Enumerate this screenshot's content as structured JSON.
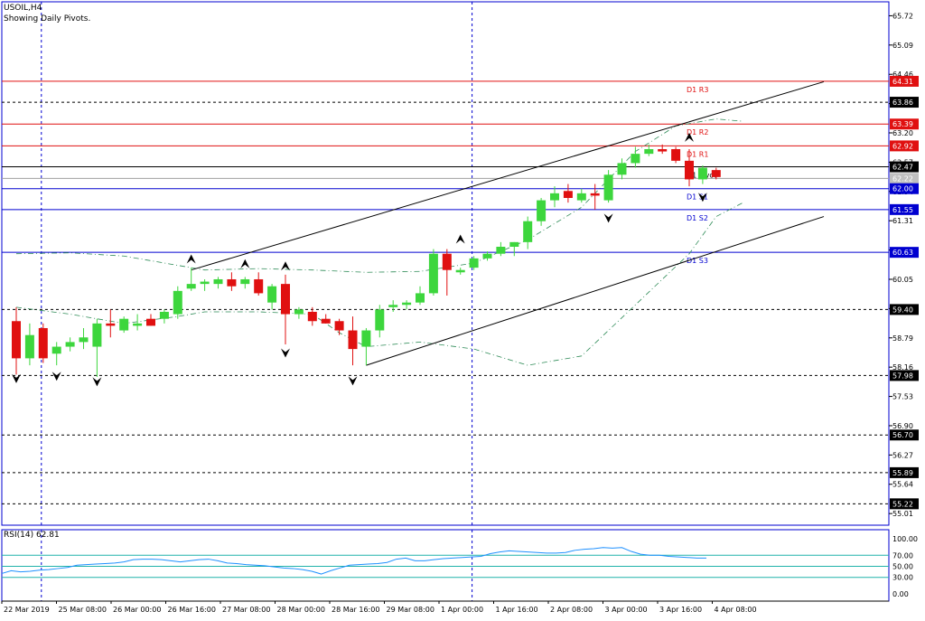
{
  "symbol_line": "USOIL,H4",
  "subtitle": "Showing Daily Pivots.",
  "rsi_label": "RSI(14) 62.81",
  "colors": {
    "frame": "#0000d0",
    "bull": "#3dd63d",
    "bear": "#e01010",
    "resistance": "#e01010",
    "support": "#0000d0",
    "pivot_line": "#000000",
    "envelope": "#2e8b57",
    "rsi_line": "#1e90ff",
    "rsi_level": "#20b2aa"
  },
  "price_axis_ticks": [
    "65.72",
    "65.09",
    "64.46",
    "63.83",
    "63.20",
    "62.57",
    "61.94",
    "61.31",
    "60.68",
    "60.05",
    "59.42",
    "58.79",
    "58.16",
    "57.53",
    "56.90",
    "56.27",
    "55.64",
    "55.01"
  ],
  "price_axis_boxes": [
    {
      "text": "64.31",
      "fill": "#e01010",
      "fg": "#ffffff"
    },
    {
      "text": "63.86",
      "fill": "#000000",
      "fg": "#ffffff"
    },
    {
      "text": "63.39",
      "fill": "#e01010",
      "fg": "#ffffff"
    },
    {
      "text": "62.92",
      "fill": "#e01010",
      "fg": "#ffffff"
    },
    {
      "text": "62.47",
      "fill": "#000000",
      "fg": "#ffffff"
    },
    {
      "text": "62.22",
      "fill": "#c0c0c0",
      "fg": "#ffffff"
    },
    {
      "text": "62.00",
      "fill": "#0000d0",
      "fg": "#ffffff"
    },
    {
      "text": "61.55",
      "fill": "#0000d0",
      "fg": "#ffffff"
    },
    {
      "text": "60.63",
      "fill": "#0000d0",
      "fg": "#ffffff"
    },
    {
      "text": "59.40",
      "fill": "#000000",
      "fg": "#ffffff"
    },
    {
      "text": "57.98",
      "fill": "#000000",
      "fg": "#ffffff"
    },
    {
      "text": "56.70",
      "fill": "#000000",
      "fg": "#ffffff"
    },
    {
      "text": "55.89",
      "fill": "#000000",
      "fg": "#ffffff"
    },
    {
      "text": "55.22",
      "fill": "#000000",
      "fg": "#ffffff"
    }
  ],
  "pivot_labels": [
    {
      "text": "D1 R3",
      "price": 64.31
    },
    {
      "text": "D1 R2",
      "price": 63.39
    },
    {
      "text": "D1 R1",
      "price": 62.92
    },
    {
      "text": "D1 Pivot",
      "price": 62.47
    },
    {
      "text": "D1 S1",
      "price": 62.0
    },
    {
      "text": "D1 S2",
      "price": 61.55
    },
    {
      "text": "D1 S3",
      "price": 60.63
    }
  ],
  "dotted_levels": [
    63.86,
    59.4,
    57.98,
    56.7,
    55.89,
    55.22
  ],
  "gray_level": 62.22,
  "time_axis": [
    "22 Mar 2019",
    "25 Mar 08:00",
    "26 Mar 00:00",
    "26 Mar 16:00",
    "27 Mar 08:00",
    "28 Mar 00:00",
    "28 Mar 16:00",
    "29 Mar 08:00",
    "1 Apr 00:00",
    "1 Apr 16:00",
    "2 Apr 08:00",
    "3 Apr 00:00",
    "3 Apr 16:00",
    "4 Apr 08:00"
  ],
  "rsi_axis": [
    "100.00",
    "70.00",
    "50.00",
    "30.00",
    "0.00"
  ],
  "rsi_levels": [
    70,
    50,
    30
  ],
  "rsi_values": [
    37,
    42,
    40,
    41,
    43,
    44,
    46,
    48,
    52,
    53,
    54,
    55,
    56,
    58,
    62,
    63,
    63,
    62,
    60,
    58,
    60,
    62,
    63,
    60,
    56,
    55,
    53,
    52,
    51,
    49,
    47,
    46,
    44,
    41,
    36,
    42,
    47,
    52,
    53,
    54,
    55,
    57,
    63,
    65,
    60,
    60,
    62,
    64,
    65,
    66,
    67,
    68,
    73,
    76,
    78,
    77,
    76,
    75,
    74,
    74,
    75,
    79,
    81,
    82,
    84,
    83,
    84,
    77,
    72,
    70,
    70,
    68,
    67,
    66,
    65,
    65
  ],
  "candles": [
    {
      "o": 59.15,
      "h": 59.45,
      "l": 58.0,
      "c": 58.35
    },
    {
      "o": 58.35,
      "h": 59.1,
      "l": 58.2,
      "c": 58.85
    },
    {
      "o": 59.0,
      "h": 59.1,
      "l": 58.25,
      "c": 58.35
    },
    {
      "o": 58.45,
      "h": 58.7,
      "l": 58.2,
      "c": 58.6
    },
    {
      "o": 58.6,
      "h": 58.8,
      "l": 58.5,
      "c": 58.7
    },
    {
      "o": 58.7,
      "h": 59.0,
      "l": 58.55,
      "c": 58.8
    },
    {
      "o": 58.6,
      "h": 59.2,
      "l": 57.95,
      "c": 59.1
    },
    {
      "o": 59.1,
      "h": 59.4,
      "l": 58.8,
      "c": 59.05
    },
    {
      "o": 58.95,
      "h": 59.25,
      "l": 58.9,
      "c": 59.2
    },
    {
      "o": 59.05,
      "h": 59.3,
      "l": 58.95,
      "c": 59.1
    },
    {
      "o": 59.2,
      "h": 59.3,
      "l": 59.05,
      "c": 59.05
    },
    {
      "o": 59.2,
      "h": 59.4,
      "l": 59.1,
      "c": 59.35
    },
    {
      "o": 59.3,
      "h": 59.9,
      "l": 59.2,
      "c": 59.8
    },
    {
      "o": 59.85,
      "h": 60.3,
      "l": 59.8,
      "c": 59.95
    },
    {
      "o": 59.95,
      "h": 60.05,
      "l": 59.8,
      "c": 60.0
    },
    {
      "o": 59.95,
      "h": 60.1,
      "l": 59.85,
      "c": 60.05
    },
    {
      "o": 60.05,
      "h": 60.2,
      "l": 59.8,
      "c": 59.9
    },
    {
      "o": 59.95,
      "h": 60.1,
      "l": 59.85,
      "c": 60.05
    },
    {
      "o": 60.05,
      "h": 60.2,
      "l": 59.7,
      "c": 59.75
    },
    {
      "o": 59.55,
      "h": 59.95,
      "l": 59.4,
      "c": 59.9
    },
    {
      "o": 59.95,
      "h": 60.15,
      "l": 58.65,
      "c": 59.3
    },
    {
      "o": 59.3,
      "h": 59.45,
      "l": 59.2,
      "c": 59.4
    },
    {
      "o": 59.35,
      "h": 59.45,
      "l": 59.05,
      "c": 59.15
    },
    {
      "o": 59.2,
      "h": 59.3,
      "l": 59.1,
      "c": 59.1
    },
    {
      "o": 59.15,
      "h": 59.2,
      "l": 58.85,
      "c": 58.95
    },
    {
      "o": 58.95,
      "h": 59.25,
      "l": 58.2,
      "c": 58.55
    },
    {
      "o": 58.6,
      "h": 59.0,
      "l": 58.2,
      "c": 58.95
    },
    {
      "o": 58.95,
      "h": 59.5,
      "l": 58.8,
      "c": 59.4
    },
    {
      "o": 59.45,
      "h": 59.6,
      "l": 59.35,
      "c": 59.5
    },
    {
      "o": 59.5,
      "h": 59.6,
      "l": 59.4,
      "c": 59.55
    },
    {
      "o": 59.55,
      "h": 59.9,
      "l": 59.5,
      "c": 59.75
    },
    {
      "o": 59.75,
      "h": 60.7,
      "l": 59.7,
      "c": 60.6
    },
    {
      "o": 60.6,
      "h": 60.7,
      "l": 59.7,
      "c": 60.25
    },
    {
      "o": 60.2,
      "h": 60.3,
      "l": 60.15,
      "c": 60.25
    },
    {
      "o": 60.3,
      "h": 60.55,
      "l": 60.25,
      "c": 60.5
    },
    {
      "o": 60.5,
      "h": 60.65,
      "l": 60.45,
      "c": 60.6
    },
    {
      "o": 60.6,
      "h": 60.85,
      "l": 60.55,
      "c": 60.75
    },
    {
      "o": 60.75,
      "h": 60.85,
      "l": 60.55,
      "c": 60.85
    },
    {
      "o": 60.85,
      "h": 61.4,
      "l": 60.7,
      "c": 61.3
    },
    {
      "o": 61.3,
      "h": 61.8,
      "l": 61.2,
      "c": 61.75
    },
    {
      "o": 61.75,
      "h": 62.05,
      "l": 61.6,
      "c": 61.9
    },
    {
      "o": 61.95,
      "h": 62.1,
      "l": 61.7,
      "c": 61.8
    },
    {
      "o": 61.75,
      "h": 62.0,
      "l": 61.7,
      "c": 61.9
    },
    {
      "o": 61.9,
      "h": 62.1,
      "l": 61.55,
      "c": 61.85
    },
    {
      "o": 61.75,
      "h": 62.4,
      "l": 61.7,
      "c": 62.3
    },
    {
      "o": 62.3,
      "h": 62.65,
      "l": 62.2,
      "c": 62.55
    },
    {
      "o": 62.55,
      "h": 62.9,
      "l": 62.45,
      "c": 62.75
    },
    {
      "o": 62.75,
      "h": 62.95,
      "l": 62.7,
      "c": 62.85
    },
    {
      "o": 62.85,
      "h": 62.95,
      "l": 62.75,
      "c": 62.8
    },
    {
      "o": 62.85,
      "h": 62.9,
      "l": 62.55,
      "c": 62.6
    },
    {
      "o": 62.6,
      "h": 62.85,
      "l": 62.05,
      "c": 62.2
    },
    {
      "o": 62.2,
      "h": 62.5,
      "l": 62.1,
      "c": 62.45
    },
    {
      "o": 62.4,
      "h": 62.45,
      "l": 62.2,
      "c": 62.25
    }
  ],
  "envelope": {
    "upper": [
      [
        0,
        60.6
      ],
      [
        4,
        60.62
      ],
      [
        8,
        60.55
      ],
      [
        12,
        60.35
      ],
      [
        14,
        60.25
      ],
      [
        18,
        60.28
      ],
      [
        22,
        60.25
      ],
      [
        26,
        60.2
      ],
      [
        30,
        60.22
      ],
      [
        34,
        60.4
      ],
      [
        38,
        60.9
      ],
      [
        42,
        61.6
      ],
      [
        46,
        62.8
      ],
      [
        49,
        63.35
      ],
      [
        52,
        63.5
      ],
      [
        54,
        63.45
      ]
    ],
    "lower": [
      [
        0,
        59.45
      ],
      [
        4,
        59.3
      ],
      [
        8,
        59.1
      ],
      [
        12,
        59.25
      ],
      [
        14,
        59.35
      ],
      [
        18,
        59.35
      ],
      [
        22,
        59.3
      ],
      [
        24,
        58.9
      ],
      [
        26,
        58.6
      ],
      [
        30,
        58.7
      ],
      [
        34,
        58.55
      ],
      [
        38,
        58.2
      ],
      [
        42,
        58.4
      ],
      [
        46,
        59.5
      ],
      [
        50,
        60.6
      ],
      [
        52,
        61.4
      ],
      [
        54,
        61.7
      ]
    ]
  },
  "trend_lines": {
    "upper": [
      [
        13,
        60.25
      ],
      [
        60,
        64.3
      ]
    ],
    "lower": [
      [
        26,
        58.2
      ],
      [
        60,
        61.4
      ]
    ]
  },
  "fractals_up": [
    [
      13,
      60.35
    ],
    [
      17,
      60.25
    ],
    [
      20,
      60.2
    ],
    [
      33,
      60.78
    ],
    [
      50,
      62.97
    ]
  ],
  "fractals_down": [
    [
      0,
      58.05
    ],
    [
      3,
      58.1
    ],
    [
      6,
      57.98
    ],
    [
      20,
      58.6
    ],
    [
      25,
      58.0
    ],
    [
      44,
      61.5
    ],
    [
      51,
      61.95
    ]
  ],
  "session_separators": [
    2,
    34
  ]
}
